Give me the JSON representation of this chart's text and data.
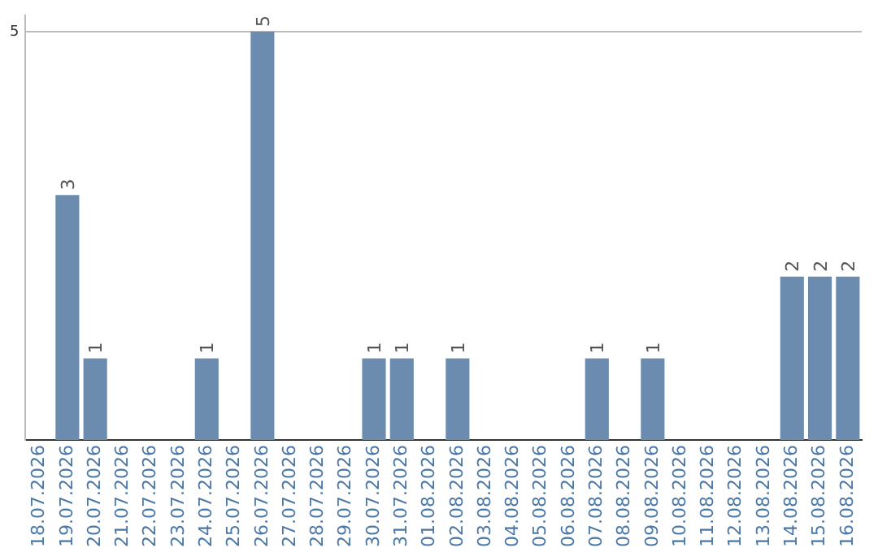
{
  "chart_data": {
    "type": "bar",
    "categories": [
      "18.07.2026",
      "19.07.2026",
      "20.07.2026",
      "21.07.2026",
      "22.07.2026",
      "23.07.2026",
      "24.07.2026",
      "25.07.2026",
      "26.07.2026",
      "27.07.2026",
      "28.07.2026",
      "29.07.2026",
      "30.07.2026",
      "31.07.2026",
      "01.08.2026",
      "02.08.2026",
      "03.08.2026",
      "04.08.2026",
      "05.08.2026",
      "06.08.2026",
      "07.08.2026",
      "08.08.2026",
      "09.08.2026",
      "10.08.2026",
      "11.08.2026",
      "12.08.2026",
      "13.08.2026",
      "14.08.2026",
      "15.08.2026",
      "16.08.2026"
    ],
    "values": [
      0,
      3,
      1,
      0,
      0,
      0,
      1,
      0,
      5,
      0,
      0,
      0,
      1,
      1,
      0,
      1,
      0,
      0,
      0,
      0,
      1,
      0,
      1,
      0,
      0,
      0,
      0,
      2,
      2,
      2
    ],
    "value_labels": [
      null,
      "3",
      "1",
      null,
      null,
      null,
      "1",
      null,
      "5",
      null,
      null,
      null,
      "1",
      "1",
      null,
      "1",
      null,
      null,
      null,
      null,
      "1",
      null,
      "1",
      null,
      null,
      null,
      null,
      "2",
      "2",
      "2"
    ],
    "color": "#6b8cae",
    "ylim": [
      0,
      5.2
    ],
    "yticks": [
      5
    ],
    "grid": "y",
    "legend": false
  }
}
